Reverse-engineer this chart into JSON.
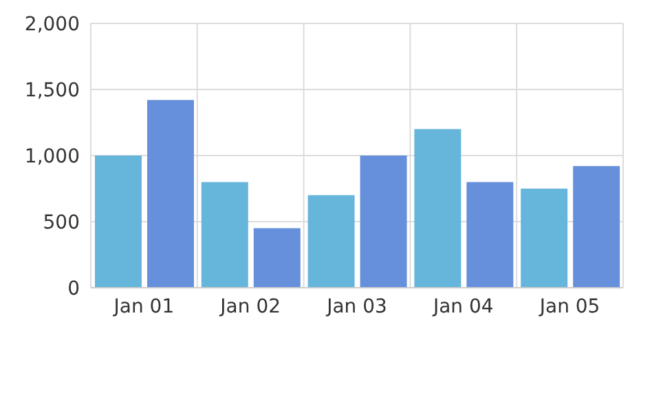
{
  "chart_data": {
    "type": "bar",
    "categories": [
      "Jan 01",
      "Jan 02",
      "Jan 03",
      "Jan 04",
      "Jan 05"
    ],
    "series": [
      {
        "color": "#66b6dc",
        "values": [
          1000,
          800,
          700,
          1200,
          750
        ]
      },
      {
        "color": "#6690dc",
        "values": [
          1420,
          450,
          1000,
          800,
          920
        ]
      }
    ],
    "ylim": [
      0,
      2000
    ],
    "yticks": [
      0,
      500,
      {
        "value": 1000,
        "label": "1,000"
      },
      {
        "value": 1500,
        "label": "1,500"
      },
      {
        "value": 2000,
        "label": "2,000"
      }
    ],
    "grid": true
  }
}
